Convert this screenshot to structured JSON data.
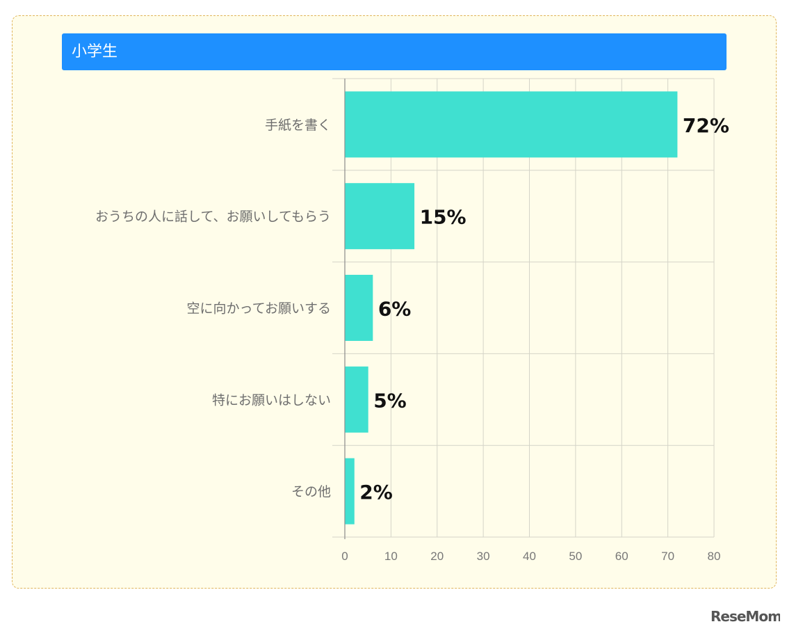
{
  "header": {
    "title": "小学生"
  },
  "colors": {
    "bar": "#40e0d0",
    "header": "#1e90ff",
    "grid": "#d4d4c8",
    "axis": "#8a8a8a"
  },
  "chart_data": {
    "type": "bar",
    "orientation": "horizontal",
    "title": "小学生",
    "categories": [
      "手紙を書く",
      "おうちの人に話して、お願いしてもらう",
      "空に向かってお願いする",
      "特にお願いはしない",
      "その他"
    ],
    "values": [
      72,
      15,
      6,
      5,
      2
    ],
    "data_labels": [
      "72%",
      "15%",
      "6%",
      "5%",
      "2%"
    ],
    "xlim": [
      0,
      80
    ],
    "x_ticks": [
      "0",
      "10",
      "20",
      "30",
      "40",
      "50",
      "60",
      "70",
      "80"
    ],
    "grid": true,
    "legend": "none"
  },
  "watermark": {
    "text": "ReseMom"
  }
}
